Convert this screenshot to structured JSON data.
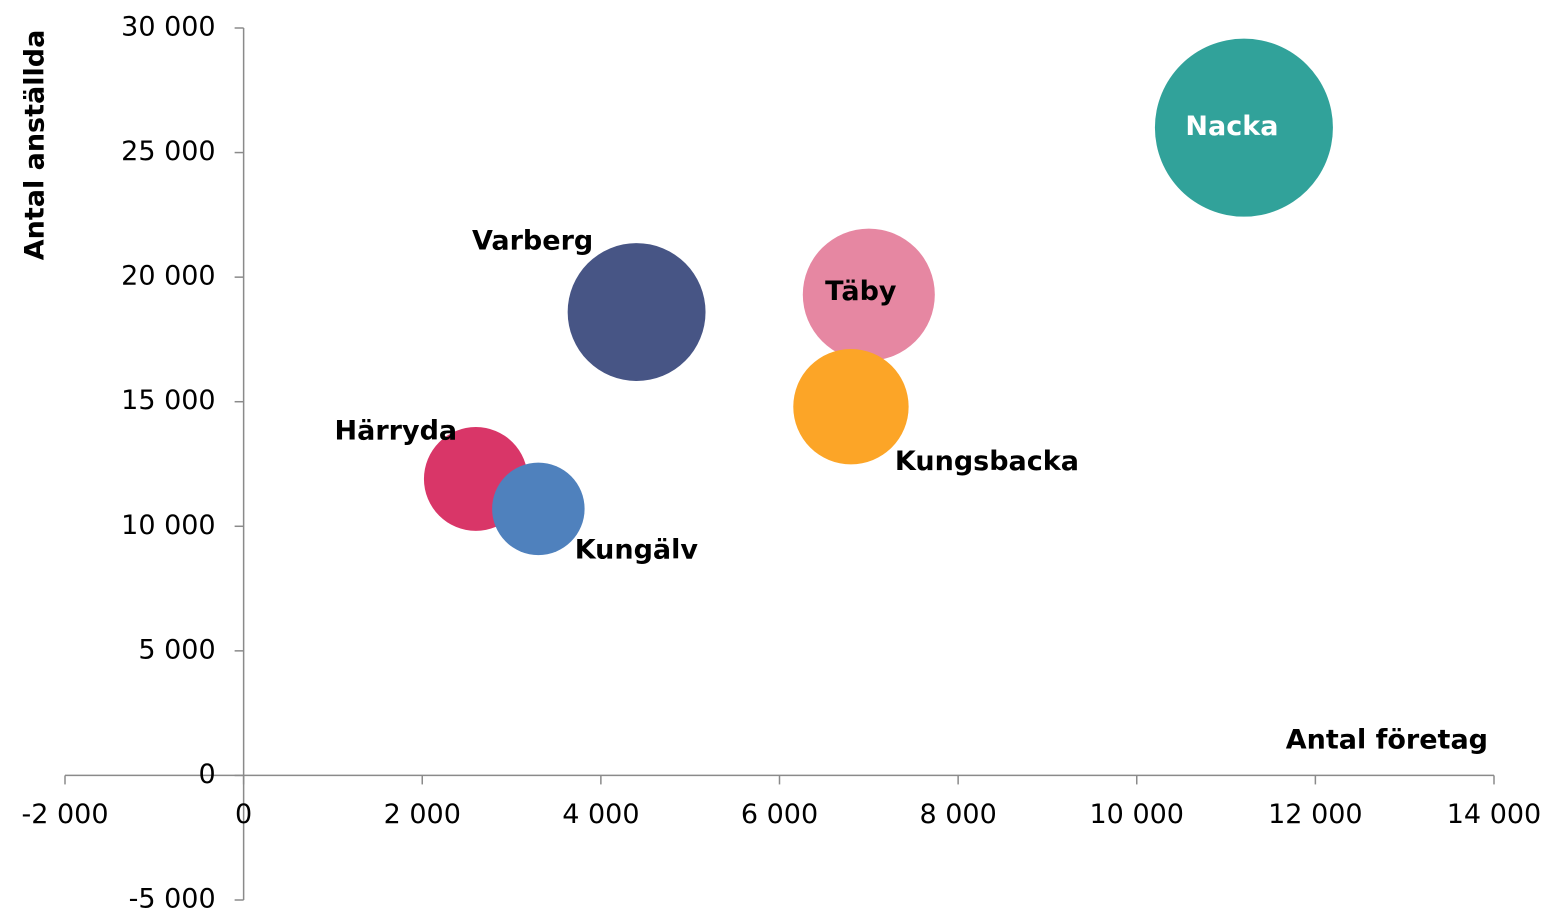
{
  "chart_data": {
    "type": "bubble",
    "x_label": "Antal företag",
    "y_label": "Antal anställda",
    "series": [
      {
        "name": "Nacka",
        "color": "#31a29a",
        "x": 11200,
        "y": 26000,
        "size": 100
      },
      {
        "name": "Varberg",
        "color": "#475585",
        "x": 4400,
        "y": 18600,
        "size": 60
      },
      {
        "name": "Täby",
        "color": "#e687a2",
        "x": 7000,
        "y": 19300,
        "size": 55
      },
      {
        "name": "Kungsbacka",
        "color": "#fca527",
        "x": 6800,
        "y": 14800,
        "size": 42
      },
      {
        "name": "Härryda",
        "color": "#d93668",
        "x": 2600,
        "y": 11900,
        "size": 34
      },
      {
        "name": "Kungälv",
        "color": "#4f81bd",
        "x": 3300,
        "y": 10700,
        "size": 27
      }
    ],
    "xlim": [
      -2000,
      14000
    ],
    "xticks": [
      {
        "value": -2000,
        "label": "-2 000"
      },
      0,
      {
        "value": 2000,
        "label": "2 000"
      },
      {
        "value": 4000,
        "label": "4 000"
      },
      {
        "value": 6000,
        "label": "6 000"
      },
      {
        "value": 8000,
        "label": "8 000"
      },
      {
        "value": 10000,
        "label": "10 000"
      },
      {
        "value": 12000,
        "label": "12 000"
      },
      {
        "value": 14000,
        "label": "14 000"
      }
    ],
    "ylim": [
      -5000,
      30000
    ],
    "yticks": [
      {
        "value": -5000,
        "label": "-5 000"
      },
      0,
      {
        "value": 5000,
        "label": "5 000"
      },
      {
        "value": 10000,
        "label": "10 000"
      },
      {
        "value": 15000,
        "label": "15 000"
      },
      {
        "value": 20000,
        "label": "20 000"
      },
      {
        "value": 25000,
        "label": "25 000"
      },
      {
        "value": 30000,
        "label": "30 000"
      }
    ],
    "grid": false
  }
}
